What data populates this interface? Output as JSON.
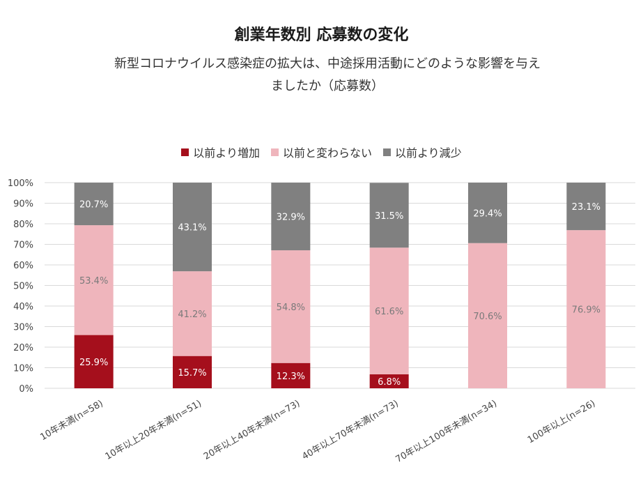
{
  "title": "創業年数別 応募数の変化",
  "subtitle_line1": "新型コロナウイルス感染症の拡大は、中途採用活動にどのような影響を与え",
  "subtitle_line2": "ましたか（応募数）",
  "colors": {
    "increase": "#a50f1c",
    "same": "#efb5bc",
    "decrease": "#808080",
    "grid": "#d9d9d9"
  },
  "chart_data": {
    "type": "bar",
    "stacked": true,
    "categories": [
      "10年未満(n=58)",
      "10年以上20年未満(n=51)",
      "20年以上40年未満(n=73)",
      "40年以上70年未満(n=73)",
      "70年以上100年未満(n=34)",
      "100年以上(n=26)"
    ],
    "series": [
      {
        "name": "以前より増加",
        "values": [
          25.9,
          15.7,
          12.3,
          6.8,
          0,
          0
        ],
        "labels": [
          "25.9%",
          "15.7%",
          "12.3%",
          "6.8%",
          "",
          ""
        ]
      },
      {
        "name": "以前と変わらない",
        "values": [
          53.4,
          41.2,
          54.8,
          61.6,
          70.6,
          76.9
        ],
        "labels": [
          "53.4%",
          "41.2%",
          "54.8%",
          "61.6%",
          "70.6%",
          "76.9%"
        ]
      },
      {
        "name": "以前より減少",
        "values": [
          20.7,
          43.1,
          32.9,
          31.5,
          29.4,
          23.1
        ],
        "labels": [
          "20.7%",
          "43.1%",
          "32.9%",
          "31.5%",
          "29.4%",
          "23.1%"
        ]
      }
    ],
    "y_ticks": [
      "0%",
      "10%",
      "20%",
      "30%",
      "40%",
      "50%",
      "60%",
      "70%",
      "80%",
      "90%",
      "100%"
    ],
    "ylim": [
      0,
      100
    ],
    "grid": true,
    "legend_position": "top"
  }
}
